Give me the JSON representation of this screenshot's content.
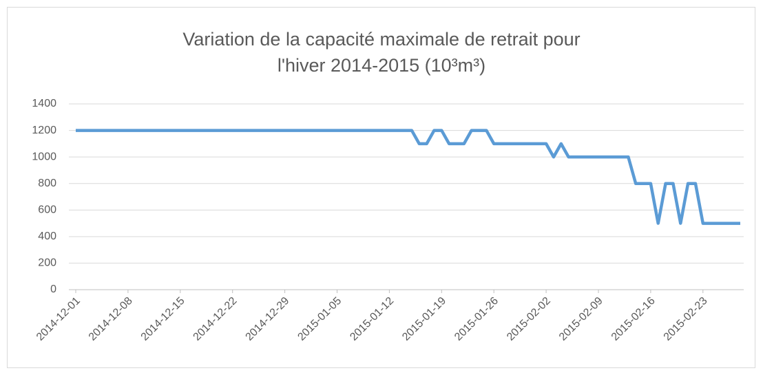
{
  "chart_data": {
    "type": "line",
    "title": "Variation de la capacité maximale de retrait pour l'hiver 2014-2015 (10³m³)",
    "x": [
      "2014-12-01",
      "2014-12-02",
      "2014-12-03",
      "2014-12-04",
      "2014-12-05",
      "2014-12-06",
      "2014-12-07",
      "2014-12-08",
      "2014-12-09",
      "2014-12-10",
      "2014-12-11",
      "2014-12-12",
      "2014-12-13",
      "2014-12-14",
      "2014-12-15",
      "2014-12-16",
      "2014-12-17",
      "2014-12-18",
      "2014-12-19",
      "2014-12-20",
      "2014-12-21",
      "2014-12-22",
      "2014-12-23",
      "2014-12-24",
      "2014-12-25",
      "2014-12-26",
      "2014-12-27",
      "2014-12-28",
      "2014-12-29",
      "2014-12-30",
      "2014-12-31",
      "2015-01-01",
      "2015-01-02",
      "2015-01-03",
      "2015-01-04",
      "2015-01-05",
      "2015-01-06",
      "2015-01-07",
      "2015-01-08",
      "2015-01-09",
      "2015-01-10",
      "2015-01-11",
      "2015-01-12",
      "2015-01-13",
      "2015-01-14",
      "2015-01-15",
      "2015-01-16",
      "2015-01-17",
      "2015-01-18",
      "2015-01-19",
      "2015-01-20",
      "2015-01-21",
      "2015-01-22",
      "2015-01-23",
      "2015-01-24",
      "2015-01-25",
      "2015-01-26",
      "2015-01-27",
      "2015-01-28",
      "2015-01-29",
      "2015-01-30",
      "2015-01-31",
      "2015-02-01",
      "2015-02-02",
      "2015-02-03",
      "2015-02-04",
      "2015-02-05",
      "2015-02-06",
      "2015-02-07",
      "2015-02-08",
      "2015-02-09",
      "2015-02-10",
      "2015-02-11",
      "2015-02-12",
      "2015-02-13",
      "2015-02-14",
      "2015-02-15",
      "2015-02-16",
      "2015-02-17",
      "2015-02-18",
      "2015-02-19",
      "2015-02-20",
      "2015-02-21",
      "2015-02-22",
      "2015-02-23",
      "2015-02-24",
      "2015-02-25",
      "2015-02-26",
      "2015-02-27",
      "2015-02-28"
    ],
    "values": [
      1200,
      1200,
      1200,
      1200,
      1200,
      1200,
      1200,
      1200,
      1200,
      1200,
      1200,
      1200,
      1200,
      1200,
      1200,
      1200,
      1200,
      1200,
      1200,
      1200,
      1200,
      1200,
      1200,
      1200,
      1200,
      1200,
      1200,
      1200,
      1200,
      1200,
      1200,
      1200,
      1200,
      1200,
      1200,
      1200,
      1200,
      1200,
      1200,
      1200,
      1200,
      1200,
      1200,
      1200,
      1200,
      1200,
      1100,
      1100,
      1200,
      1200,
      1100,
      1100,
      1100,
      1200,
      1200,
      1200,
      1100,
      1100,
      1100,
      1100,
      1100,
      1100,
      1100,
      1100,
      1000,
      1100,
      1000,
      1000,
      1000,
      1000,
      1000,
      1000,
      1000,
      1000,
      1000,
      800,
      800,
      800,
      500,
      800,
      800,
      500,
      800,
      800,
      500,
      500,
      500,
      500,
      500,
      500
    ],
    "color": "#5b9bd5",
    "xlim": [
      "2014-12-01",
      "2015-02-28"
    ],
    "xticks": [
      "2014-12-01",
      "2014-12-08",
      "2014-12-15",
      "2014-12-22",
      "2014-12-29",
      "2015-01-05",
      "2015-01-12",
      "2015-01-19",
      "2015-01-26",
      "2015-02-02",
      "2015-02-09",
      "2015-02-16",
      "2015-02-23"
    ],
    "ylim": [
      0,
      1400
    ],
    "yticks": [
      0,
      200,
      400,
      600,
      800,
      1000,
      1200,
      1400
    ],
    "grid": true
  }
}
